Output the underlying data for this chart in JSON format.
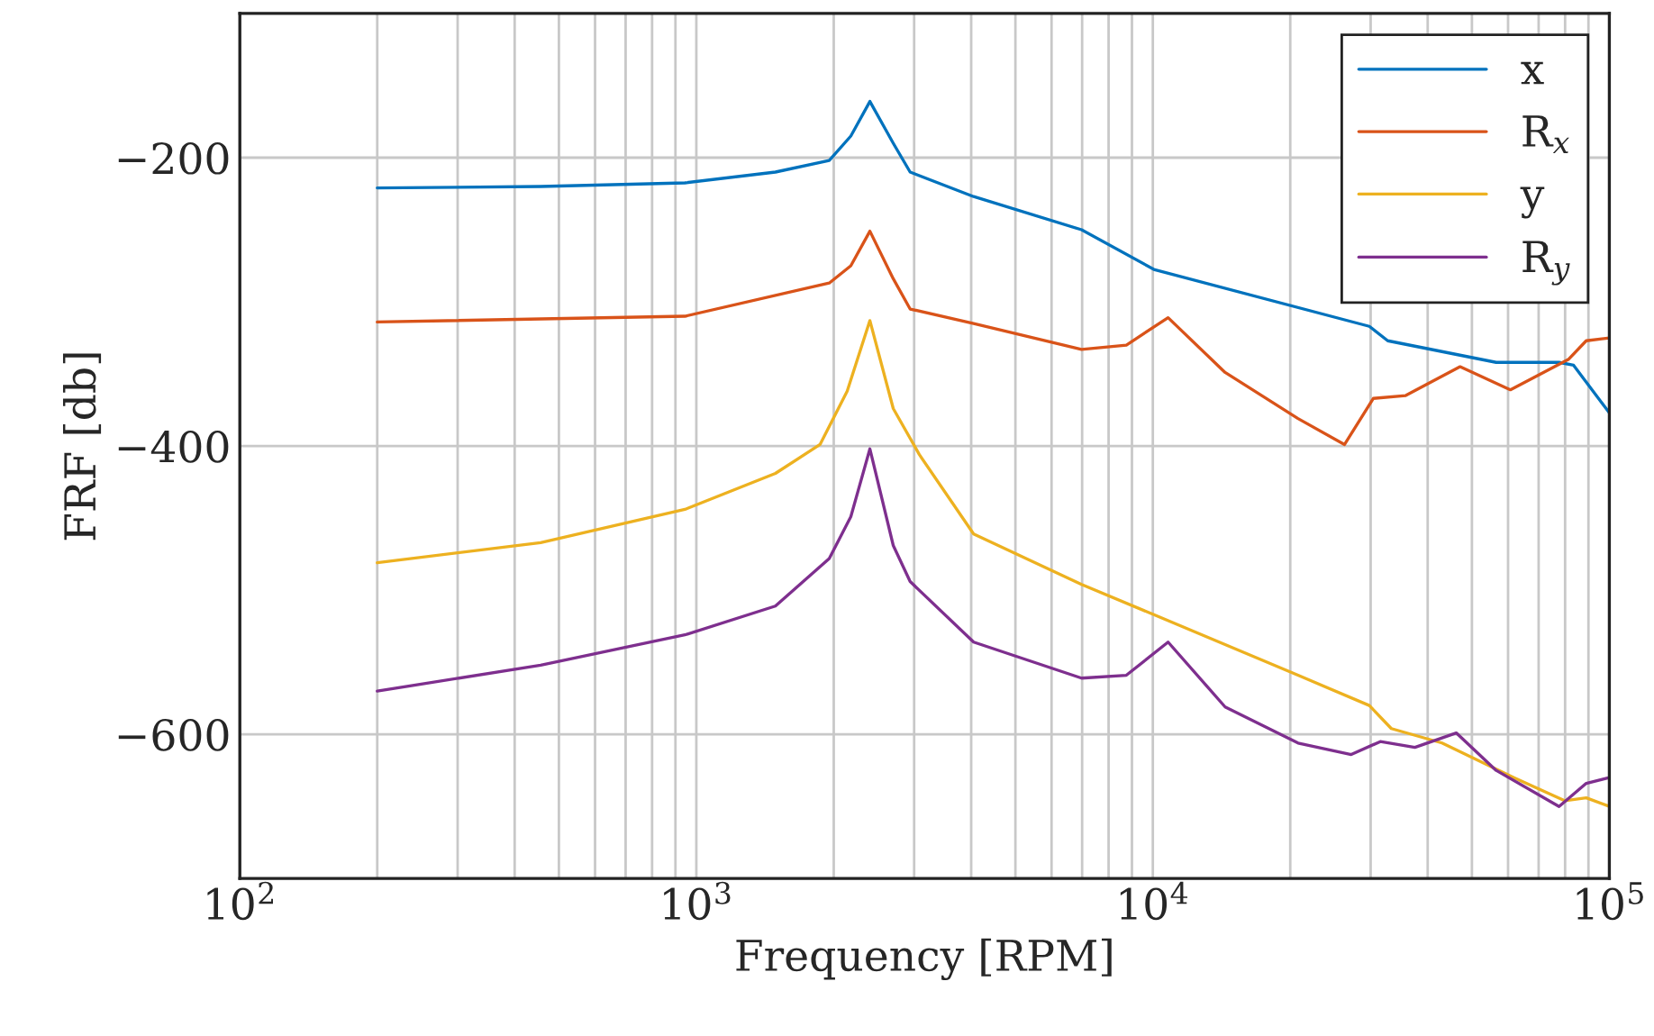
{
  "chart_data": {
    "type": "line",
    "xlabel": "Frequency [RPM]",
    "ylabel": "FRF [db]",
    "log": "x",
    "grid": true,
    "legend": "top right",
    "marker": "none",
    "line_style": "solid",
    "xlim": [
      100,
      100000
    ],
    "xticks": [
      {
        "value": 100,
        "label": "10$^{2}$"
      },
      {
        "value": 1000,
        "label": "10$^{3}$"
      },
      {
        "value": 10000,
        "label": "10$^{4}$"
      },
      {
        "value": 100000,
        "label": "10$^{5}$"
      }
    ],
    "ylim": [
      -700,
      -100
    ],
    "yticks": [
      {
        "value": -600,
        "label": "−600"
      },
      {
        "value": -400,
        "label": "−400"
      },
      {
        "value": -200,
        "label": "−200"
      }
    ],
    "series": [
      {
        "name": "x",
        "color": "#0072bd",
        "x": [
          200,
          456,
          944,
          1490,
          1955,
          2180,
          2400,
          2700,
          2940,
          4050,
          6980,
          10050,
          29800,
          32700,
          56500,
          77600,
          83500,
          100000
        ],
        "values": [
          -221,
          -220,
          -217.5,
          -210,
          -202,
          -185,
          -161,
          -190,
          -210,
          -227,
          -250,
          -277.5,
          -317,
          -327,
          -342,
          -342,
          -344,
          -377
        ]
      },
      {
        "name": "R$_{x}$",
        "color": "#d95319",
        "x": [
          200,
          944,
          1955,
          2180,
          2400,
          2700,
          2940,
          4050,
          6980,
          8750,
          10800,
          14400,
          20800,
          26300,
          30400,
          35800,
          47100,
          60700,
          81300,
          89000,
          100000
        ],
        "values": [
          -314,
          -310,
          -287,
          -275,
          -251,
          -284,
          -305,
          -315,
          -333,
          -330,
          -311,
          -349,
          -381,
          -399,
          -367,
          -365,
          -345,
          -361,
          -340,
          -327,
          -325
        ]
      },
      {
        "name": "y",
        "color": "#edb120",
        "x": [
          200,
          456,
          944,
          1490,
          1866,
          2140,
          2400,
          2700,
          3080,
          4050,
          6980,
          10050,
          20800,
          29800,
          33300,
          43000,
          61800,
          79800,
          89000,
          100000
        ],
        "values": [
          -481,
          -467,
          -444,
          -419,
          -399,
          -362,
          -313,
          -374,
          -406,
          -461,
          -496,
          -517,
          -559,
          -580,
          -596,
          -606,
          -630,
          -646,
          -644,
          -650
        ]
      },
      {
        "name": "R$_{y}$",
        "color": "#7e2f8e",
        "x": [
          200,
          456,
          944,
          1490,
          1955,
          2180,
          2400,
          2700,
          2940,
          4050,
          6980,
          8750,
          10800,
          14400,
          20800,
          27200,
          31500,
          37500,
          46200,
          56500,
          77600,
          89000,
          100000
        ],
        "values": [
          -570,
          -552,
          -531,
          -511,
          -478,
          -449,
          -402,
          -469,
          -494,
          -536,
          -561,
          -559,
          -536,
          -581,
          -606,
          -614,
          -605,
          -609,
          -599,
          -625,
          -650,
          -634,
          -630
        ]
      }
    ]
  }
}
